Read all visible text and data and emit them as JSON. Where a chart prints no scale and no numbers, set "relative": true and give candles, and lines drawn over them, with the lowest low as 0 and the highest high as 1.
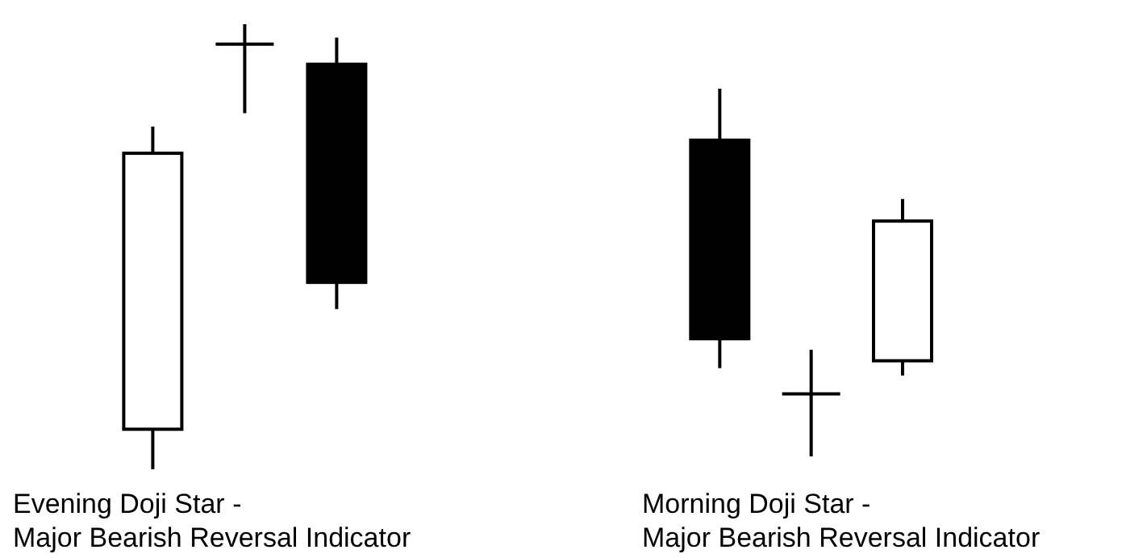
{
  "chart_data": [
    {
      "type": "candlestick",
      "relative": true,
      "categories": [
        null,
        null,
        null
      ],
      "xlabel": "Evening Doji Star -\nMajor Bearish Reversal Indicator",
      "ohlc": [
        [
          0.09,
          0.77,
          0,
          0.71
        ],
        [
          0.955,
          1,
          0.8,
          0.955
        ],
        [
          0.91,
          0.97,
          0.36,
          0.42
        ]
      ],
      "colors": [
        "#ffffff",
        "#000000",
        "#000000"
      ]
    },
    {
      "type": "candlestick",
      "relative": true,
      "categories": [
        null,
        null,
        null
      ],
      "xlabel": "Morning Doji Star -\nMajor Bearish Reversal Indicator",
      "ohlc": [
        [
          0.86,
          1,
          0.24,
          0.32
        ],
        [
          0.17,
          0.29,
          0,
          0.17
        ],
        [
          0.26,
          0.7,
          0.22,
          0.64
        ]
      ],
      "colors": [
        "#000000",
        "#000000",
        "#ffffff"
      ]
    }
  ]
}
